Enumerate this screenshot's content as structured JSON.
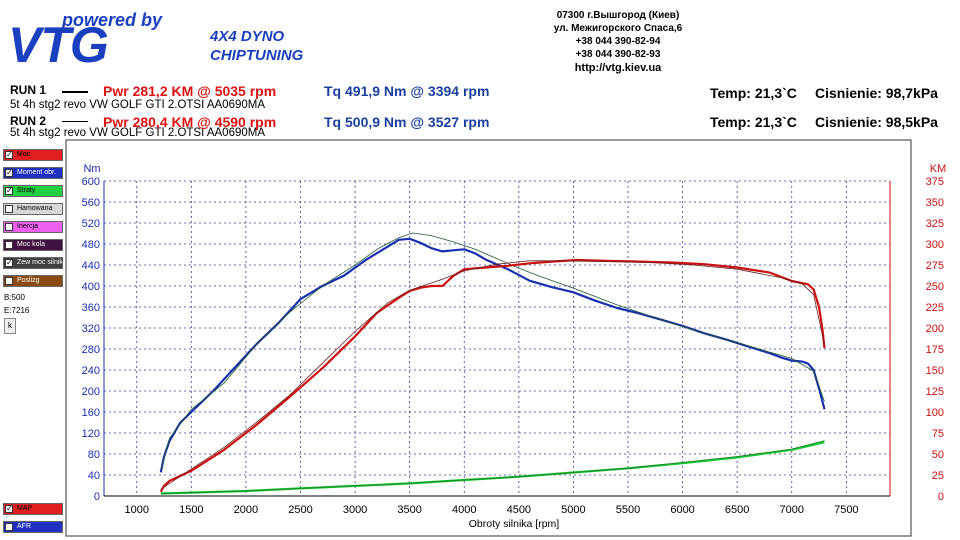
{
  "header": {
    "logo_tagline": "powered by",
    "logo_text": "VTG",
    "dyno_line1": "4X4 DYNO",
    "dyno_line2": "CHIPTUNING",
    "contact": [
      "07300 г.Вышгород (Киев)",
      "ул. Межигорского Спаса,6",
      "+38 044 390-82-94",
      "+38 044 390-82-93",
      "http://vtg.kiev.ua"
    ]
  },
  "runs": [
    {
      "label": "RUN 1",
      "desc": "5t 4h stg2 revo VW GOLF GTI 2.OTSI AA0690MA",
      "pwr": "Pwr  281,2 KM @ 5035 rpm",
      "tq": "Tq 491,9 Nm @ 3394 rpm",
      "temp": "Temp: 21,3`C",
      "pressure": "Cisnienie: 98,7kPa"
    },
    {
      "label": "RUN 2",
      "desc": "5t 4h stg2 revo VW GOLF GTI 2.OTSI AA0690MA",
      "pwr": "Pwr  280,4 KM @ 4590 rpm",
      "tq": "Tq 500,9 Nm @ 3527 rpm",
      "temp": "Temp: 21,3`C",
      "pressure": "Cisnienie: 98,5kPa"
    }
  ],
  "legend": [
    {
      "label": "Moc",
      "color": "#e02020",
      "checked": true
    },
    {
      "label": "Moment obr.",
      "color": "#2030c0",
      "checked": true
    },
    {
      "label": "Straty",
      "color": "#20d040",
      "checked": true
    },
    {
      "label": "Hamowana",
      "color": "#d8d8d8",
      "checked": false
    },
    {
      "label": "Inercja",
      "color": "#f060f0",
      "checked": false
    },
    {
      "label": "Moc kola",
      "color": "#401040",
      "checked": false
    },
    {
      "label": "Zew moc silnika",
      "color": "#404040",
      "checked": true
    },
    {
      "label": "Poslizg",
      "color": "#8a4a10",
      "checked": false
    }
  ],
  "side_values": {
    "b": "B:500",
    "e": "E:7216",
    "button": "k"
  },
  "legend_bottom": [
    {
      "label": "MAP",
      "color": "#e02020",
      "checked": true
    },
    {
      "label": "AFR",
      "color": "#2030c0",
      "checked": false
    }
  ],
  "chart_data": {
    "type": "line",
    "xlabel": "Obroty silnika [rpm]",
    "ylabel_left": "Nm",
    "ylabel_right": "KM",
    "xlim": [
      700,
      7900
    ],
    "ylim_left": [
      0,
      600
    ],
    "ylim_right": [
      0,
      375
    ],
    "xticks": [
      1000,
      1500,
      2000,
      2500,
      3000,
      3500,
      4000,
      4500,
      5000,
      5500,
      6000,
      6500,
      7000,
      7500
    ],
    "yticks_left": [
      0,
      40,
      80,
      120,
      160,
      200,
      240,
      280,
      320,
      360,
      400,
      440,
      480,
      520,
      560,
      600
    ],
    "yticks_right": [
      0,
      25,
      50,
      75,
      100,
      125,
      150,
      175,
      200,
      225,
      250,
      275,
      300,
      325,
      350,
      375
    ],
    "grid": true,
    "series": [
      {
        "name": "Tq RUN 1",
        "axis": "left",
        "color": "#1a2fb0",
        "width": 2.2,
        "x": [
          1220,
          1250,
          1300,
          1400,
          1500,
          1700,
          1900,
          2100,
          2300,
          2500,
          2700,
          2900,
          3100,
          3300,
          3400,
          3500,
          3600,
          3700,
          3800,
          3900,
          4000,
          4100,
          4200,
          4400,
          4600,
          4800,
          5000,
          5200,
          5400,
          5600,
          5800,
          6000,
          6200,
          6400,
          6600,
          6800,
          6900,
          7000,
          7100,
          7150,
          7200,
          7250,
          7300
        ],
        "y": [
          45,
          75,
          105,
          140,
          160,
          200,
          245,
          290,
          330,
          375,
          400,
          420,
          450,
          475,
          488,
          490,
          482,
          472,
          466,
          468,
          470,
          462,
          450,
          432,
          410,
          398,
          388,
          372,
          358,
          348,
          336,
          324,
          310,
          298,
          285,
          272,
          264,
          258,
          256,
          252,
          240,
          205,
          165
        ]
      },
      {
        "name": "Tq RUN 2",
        "axis": "left",
        "color": "#1d5a2a",
        "width": 0.8,
        "x": [
          1220,
          1300,
          1500,
          1800,
          2100,
          2400,
          2700,
          3000,
          3200,
          3400,
          3527,
          3700,
          3900,
          4100,
          4300,
          4500,
          4700,
          5000,
          5400,
          5800,
          6200,
          6600,
          7000,
          7200,
          7300
        ],
        "y": [
          50,
          110,
          165,
          215,
          290,
          350,
          400,
          440,
          470,
          492,
          501,
          496,
          484,
          470,
          452,
          434,
          418,
          396,
          364,
          336,
          310,
          286,
          262,
          238,
          180
        ]
      },
      {
        "name": "Pwr RUN 1",
        "axis": "right",
        "color": "#cc1010",
        "width": 2.2,
        "x": [
          1220,
          1250,
          1300,
          1500,
          1800,
          2100,
          2400,
          2700,
          3000,
          3200,
          3400,
          3500,
          3600,
          3700,
          3800,
          3900,
          4000,
          4200,
          4400,
          4600,
          4800,
          5035,
          5300,
          5600,
          5900,
          6200,
          6500,
          6800,
          7000,
          7150,
          7200,
          7250,
          7280,
          7300
        ],
        "y": [
          5,
          12,
          18,
          30,
          55,
          85,
          118,
          152,
          190,
          218,
          236,
          244,
          248,
          250,
          250,
          262,
          270,
          272,
          274,
          277,
          279,
          281,
          280,
          279,
          278,
          276,
          272,
          266,
          256,
          252,
          246,
          225,
          200,
          176
        ]
      },
      {
        "name": "Pwr RUN 2",
        "axis": "right",
        "color": "#6a1f1f",
        "width": 0.8,
        "x": [
          1220,
          1500,
          1800,
          2100,
          2400,
          2700,
          3000,
          3300,
          3500,
          3800,
          4000,
          4300,
          4590,
          4900,
          5300,
          5700,
          6100,
          6500,
          6900,
          7100,
          7200,
          7300
        ],
        "y": [
          8,
          32,
          58,
          88,
          120,
          158,
          196,
          230,
          245,
          258,
          268,
          276,
          280,
          280,
          279,
          278,
          275,
          270,
          260,
          252,
          240,
          180
        ]
      },
      {
        "name": "Straty RUN 1",
        "axis": "right",
        "color": "#10c830",
        "width": 2.2,
        "x": [
          1220,
          1500,
          2000,
          2500,
          3000,
          3500,
          4000,
          4500,
          5000,
          5500,
          6000,
          6500,
          7000,
          7300
        ],
        "y": [
          3,
          4,
          6,
          9,
          12,
          15,
          19,
          23,
          28,
          33,
          39,
          46,
          55,
          64
        ]
      },
      {
        "name": "Straty RUN 2",
        "axis": "right",
        "color": "#2a7a2a",
        "width": 0.8,
        "x": [
          1220,
          1500,
          2000,
          2500,
          3000,
          3500,
          4000,
          4500,
          5000,
          5500,
          6000,
          6500,
          7000,
          7300
        ],
        "y": [
          3,
          4,
          6,
          9,
          12,
          15,
          19,
          23,
          28,
          33,
          40,
          47,
          56,
          66
        ]
      }
    ]
  }
}
